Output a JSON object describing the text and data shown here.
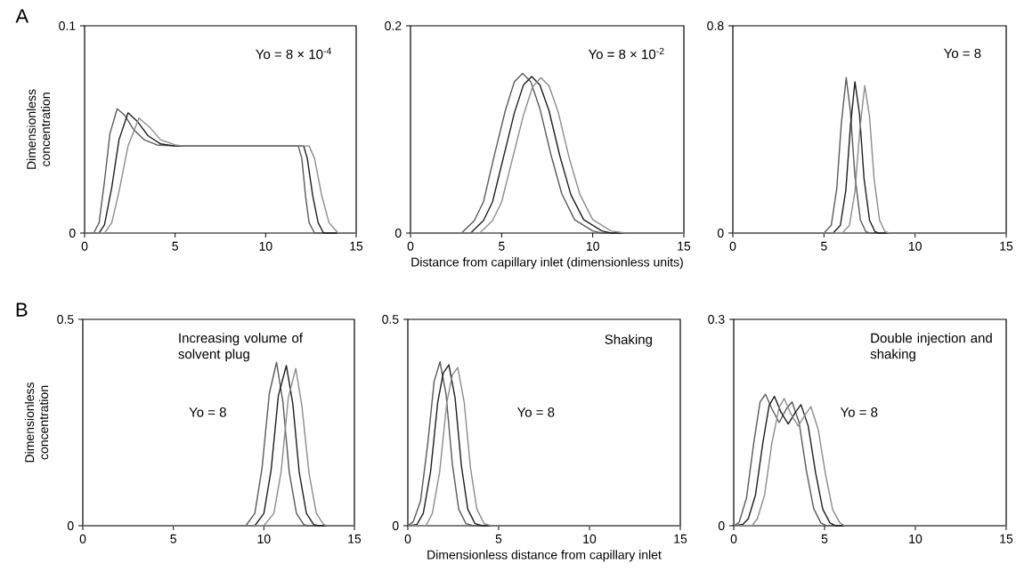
{
  "chart_data": [
    {
      "type": "line",
      "ylabel": "Dimensionless concentration",
      "xlim": [
        0,
        15
      ],
      "xticks": [
        0,
        5,
        10,
        15
      ],
      "ylim": [
        0,
        0.1
      ],
      "yticks": [
        0,
        0.1
      ],
      "annotations": [
        "A",
        "Yo = 8 × 10$^{-4}$"
      ],
      "series": [
        {
          "color": "#5a5a5a",
          "x": [
            0,
            0.5,
            0.8,
            1.1,
            1.4,
            1.8,
            2.2,
            2.7,
            3.3,
            4.0,
            5,
            11.8,
            12.0,
            12.2,
            12.4,
            12.7,
            15
          ],
          "values": [
            0,
            0,
            0.005,
            0.025,
            0.048,
            0.06,
            0.057,
            0.05,
            0.045,
            0.0425,
            0.042,
            0.042,
            0.036,
            0.018,
            0.005,
            0,
            0
          ]
        },
        {
          "color": "#1e1e1e",
          "x": [
            0,
            0.8,
            1.1,
            1.5,
            1.9,
            2.4,
            2.9,
            3.5,
            4.2,
            5,
            12.1,
            12.3,
            12.6,
            12.9,
            13.2,
            15
          ],
          "values": [
            0,
            0,
            0.004,
            0.022,
            0.045,
            0.058,
            0.054,
            0.047,
            0.043,
            0.042,
            0.042,
            0.036,
            0.018,
            0.005,
            0,
            0
          ]
        },
        {
          "color": "#8c8c8c",
          "x": [
            0,
            1.1,
            1.5,
            1.9,
            2.4,
            3.0,
            3.6,
            4.2,
            5,
            5.5,
            12.4,
            12.7,
            13.1,
            13.5,
            14,
            15
          ],
          "values": [
            0,
            0,
            0.005,
            0.02,
            0.042,
            0.0555,
            0.051,
            0.045,
            0.0425,
            0.042,
            0.042,
            0.036,
            0.018,
            0.005,
            0,
            0
          ]
        }
      ]
    },
    {
      "type": "line",
      "xlabel": "Distance from capillary inlet (dimensionless units)",
      "xlim": [
        0,
        15
      ],
      "xticks": [
        0,
        5,
        10,
        15
      ],
      "ylim": [
        0,
        0.2
      ],
      "yticks": [
        0,
        0.2
      ],
      "annotations": [
        "Yo = 8 × 10$^{-2}$"
      ],
      "series": [
        {
          "color": "#5a5a5a",
          "x": [
            0,
            2.8,
            3.5,
            4.0,
            4.6,
            5.2,
            5.7,
            6.15,
            6.6,
            7.1,
            7.7,
            8.3,
            9,
            10,
            10.5,
            15
          ],
          "values": [
            0,
            0,
            0.012,
            0.03,
            0.075,
            0.118,
            0.146,
            0.154,
            0.146,
            0.12,
            0.076,
            0.038,
            0.013,
            0.002,
            0,
            0
          ]
        },
        {
          "color": "#1e1e1e",
          "x": [
            0,
            3.3,
            4.0,
            4.5,
            5.1,
            5.7,
            6.2,
            6.65,
            7.1,
            7.6,
            8.2,
            8.8,
            9.5,
            10.5,
            11,
            15
          ],
          "values": [
            0,
            0,
            0.012,
            0.03,
            0.073,
            0.116,
            0.143,
            0.151,
            0.143,
            0.118,
            0.074,
            0.037,
            0.013,
            0.002,
            0,
            0
          ]
        },
        {
          "color": "#8c8c8c",
          "x": [
            0,
            3.8,
            4.5,
            5.0,
            5.6,
            6.2,
            6.7,
            7.15,
            7.6,
            8.1,
            8.7,
            9.3,
            10,
            11,
            11.8,
            15
          ],
          "values": [
            0,
            0,
            0.012,
            0.03,
            0.072,
            0.114,
            0.141,
            0.15,
            0.142,
            0.117,
            0.073,
            0.037,
            0.013,
            0.002,
            0,
            0
          ]
        }
      ]
    },
    {
      "type": "line",
      "xlim": [
        0,
        15
      ],
      "xticks": [
        0,
        5,
        10,
        15
      ],
      "ylim": [
        0,
        0.8
      ],
      "yticks": [
        0,
        0.8
      ],
      "annotations": [
        "Yo = 8"
      ],
      "series": [
        {
          "color": "#5a5a5a",
          "x": [
            0,
            5.0,
            5.4,
            5.7,
            5.95,
            6.22,
            6.45,
            6.7,
            7.0,
            7.3,
            7.5,
            15
          ],
          "values": [
            0,
            0,
            0.03,
            0.17,
            0.42,
            0.6,
            0.47,
            0.22,
            0.05,
            0.005,
            0,
            0
          ]
        },
        {
          "color": "#1e1e1e",
          "x": [
            0,
            5.5,
            5.9,
            6.2,
            6.45,
            6.7,
            6.95,
            7.2,
            7.5,
            7.8,
            8,
            15
          ],
          "values": [
            0,
            0,
            0.03,
            0.165,
            0.41,
            0.584,
            0.46,
            0.21,
            0.05,
            0.005,
            0,
            0
          ]
        },
        {
          "color": "#8c8c8c",
          "x": [
            0,
            6.0,
            6.4,
            6.7,
            6.97,
            7.24,
            7.5,
            7.75,
            8.05,
            8.35,
            8.6,
            15
          ],
          "values": [
            0,
            0,
            0.03,
            0.16,
            0.4,
            0.569,
            0.45,
            0.21,
            0.05,
            0.005,
            0,
            0
          ]
        }
      ]
    },
    {
      "type": "line",
      "ylabel": "Dimensionless concentration",
      "xlim": [
        0,
        15
      ],
      "xticks": [
        0,
        5,
        10,
        15
      ],
      "ylim": [
        0,
        0.5
      ],
      "yticks": [
        0,
        0.5
      ],
      "annotations": [
        "B",
        "Increasing volume of solvent plug",
        "Yo = 8"
      ],
      "series": [
        {
          "color": "#5a5a5a",
          "x": [
            0,
            9.0,
            9.5,
            9.9,
            10.3,
            10.7,
            11.05,
            11.4,
            11.8,
            12.2,
            12.4,
            15
          ],
          "values": [
            0,
            0,
            0.03,
            0.14,
            0.32,
            0.396,
            0.3,
            0.13,
            0.03,
            0.003,
            0,
            0
          ]
        },
        {
          "color": "#1e1e1e",
          "x": [
            0,
            9.5,
            10.0,
            10.4,
            10.8,
            11.24,
            11.6,
            11.95,
            12.35,
            12.75,
            13,
            15
          ],
          "values": [
            0,
            0,
            0.03,
            0.135,
            0.315,
            0.388,
            0.295,
            0.13,
            0.03,
            0.003,
            0,
            0
          ]
        },
        {
          "color": "#8c8c8c",
          "x": [
            0,
            10.0,
            10.55,
            10.95,
            11.35,
            11.76,
            12.1,
            12.5,
            12.9,
            13.3,
            13.5,
            15
          ],
          "values": [
            0,
            0,
            0.03,
            0.13,
            0.31,
            0.381,
            0.29,
            0.125,
            0.03,
            0.003,
            0,
            0
          ]
        }
      ]
    },
    {
      "type": "line",
      "xlabel": "Dimensionless distance from capillary inlet",
      "xlim": [
        0,
        15
      ],
      "xticks": [
        0,
        5,
        10,
        15
      ],
      "ylim": [
        0,
        0.5
      ],
      "yticks": [
        0,
        0.5
      ],
      "annotations": [
        "Shaking",
        "Yo = 8"
      ],
      "series": [
        {
          "color": "#5a5a5a",
          "x": [
            0,
            0.3,
            0.7,
            1.1,
            1.45,
            1.77,
            2.1,
            2.45,
            2.8,
            3.2,
            3.6,
            15
          ],
          "values": [
            0,
            0.01,
            0.06,
            0.2,
            0.35,
            0.397,
            0.32,
            0.15,
            0.04,
            0.005,
            0,
            0
          ]
        },
        {
          "color": "#1e1e1e",
          "x": [
            0,
            0.5,
            0.85,
            1.25,
            1.65,
            1.95,
            2.26,
            2.6,
            2.95,
            3.3,
            3.7,
            4.1,
            15
          ],
          "values": [
            0,
            0.003,
            0.03,
            0.13,
            0.3,
            0.37,
            0.39,
            0.31,
            0.145,
            0.04,
            0.005,
            0,
            0
          ]
        },
        {
          "color": "#8c8c8c",
          "x": [
            0,
            1.0,
            1.35,
            1.75,
            2.15,
            2.45,
            2.75,
            3.1,
            3.45,
            3.8,
            4.2,
            4.6,
            15
          ],
          "values": [
            0,
            0,
            0.03,
            0.13,
            0.3,
            0.365,
            0.383,
            0.3,
            0.14,
            0.04,
            0.005,
            0,
            0
          ]
        }
      ]
    },
    {
      "type": "line",
      "xlim": [
        0,
        15
      ],
      "xticks": [
        0,
        5,
        10,
        15
      ],
      "ylim": [
        0,
        0.3
      ],
      "yticks": [
        0,
        0.3
      ],
      "annotations": [
        "Double injection and shaking",
        "Yo = 8"
      ],
      "series": [
        {
          "color": "#5a5a5a",
          "x": [
            0,
            0.3,
            0.7,
            1.1,
            1.45,
            1.75,
            2.1,
            2.5,
            2.9,
            3.21,
            3.6,
            4.0,
            4.4,
            4.8,
            5.1,
            15
          ],
          "values": [
            0,
            0.005,
            0.04,
            0.12,
            0.18,
            0.191,
            0.17,
            0.15,
            0.17,
            0.18,
            0.15,
            0.08,
            0.025,
            0.004,
            0,
            0
          ]
        },
        {
          "color": "#1e1e1e",
          "x": [
            0,
            0.5,
            0.8,
            1.2,
            1.6,
            1.95,
            2.24,
            2.6,
            3.0,
            3.4,
            3.7,
            4.1,
            4.5,
            4.9,
            5.3,
            5.6,
            15
          ],
          "values": [
            0,
            0.002,
            0.01,
            0.045,
            0.12,
            0.175,
            0.188,
            0.165,
            0.148,
            0.165,
            0.176,
            0.145,
            0.078,
            0.024,
            0.004,
            0,
            0
          ]
        },
        {
          "color": "#8c8c8c",
          "x": [
            0,
            1.0,
            1.3,
            1.7,
            2.1,
            2.5,
            2.78,
            3.15,
            3.55,
            3.95,
            4.25,
            4.65,
            5.05,
            5.45,
            5.85,
            6.1,
            15
          ],
          "values": [
            0,
            0,
            0.01,
            0.045,
            0.12,
            0.172,
            0.185,
            0.162,
            0.145,
            0.162,
            0.173,
            0.14,
            0.075,
            0.023,
            0.004,
            0,
            0
          ]
        }
      ]
    }
  ]
}
